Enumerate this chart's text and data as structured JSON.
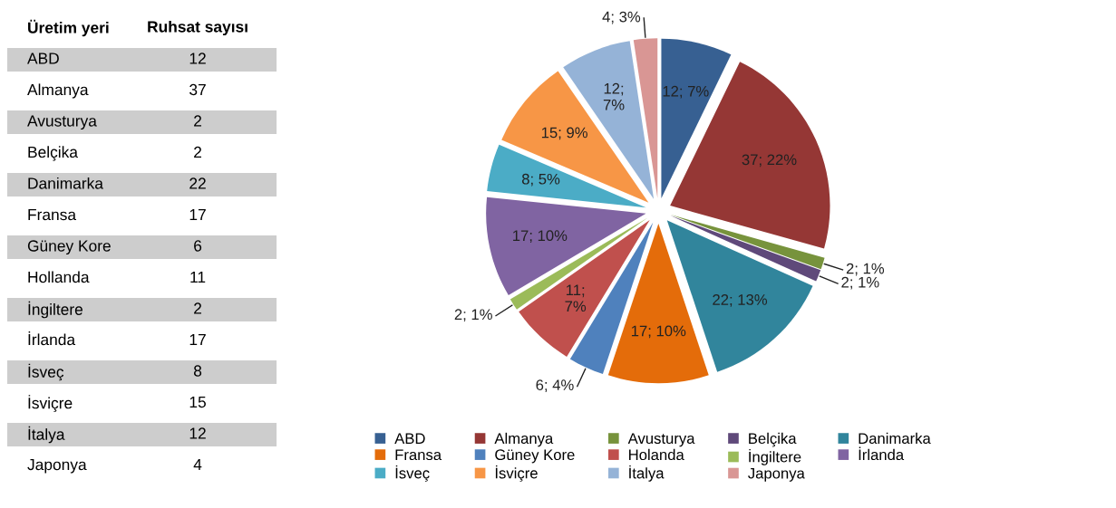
{
  "chart_data": [
    {
      "type": "other",
      "annotations": [
        "Üretim yeri",
        "Ruhsat sayısı"
      ],
      "categories": [
        "ABD",
        "Almanya",
        "Avusturya",
        "Belçika",
        "Danimarka",
        "Fransa",
        "Güney Kore",
        "Hollanda",
        "İngiltere",
        "İrlanda",
        "İsveç",
        "İsviçre",
        "İtalya",
        "Japonya"
      ],
      "values": [
        12,
        37,
        2,
        2,
        22,
        17,
        6,
        11,
        2,
        17,
        8,
        15,
        12,
        4
      ],
      "data_labels": true
    },
    {
      "type": "pie",
      "categories": [
        "ABD",
        "Almanya",
        "Avusturya",
        "Belçika",
        "Danimarka",
        "Fransa",
        "Güney Kore",
        "Holanda",
        "İngiltere",
        "İrlanda",
        "İsveç",
        "İsviçre",
        "İtalya",
        "Japonya"
      ],
      "values": [
        12,
        37,
        2,
        2,
        22,
        17,
        6,
        11,
        2,
        17,
        8,
        15,
        12,
        4
      ],
      "value_labels": [
        "12; 7%",
        "37; 22%",
        "2; 1%",
        "2; 1%",
        "22; 13%",
        "17; 10%",
        "6; 4%",
        "11;\n7%",
        "2; 1%",
        "17; 10%",
        "8; 5%",
        "15; 9%",
        "12;\n7%",
        "4; 3%"
      ],
      "colors": [
        "#376092",
        "#953735",
        "#77933c",
        "#5f497a",
        "#31859c",
        "#e46c0a",
        "#4f81bd",
        "#c0504d",
        "#9bbb59",
        "#8064a2",
        "#4bacc6",
        "#f79646",
        "#95b3d7",
        "#d99694"
      ],
      "legend": "bottom"
    }
  ]
}
